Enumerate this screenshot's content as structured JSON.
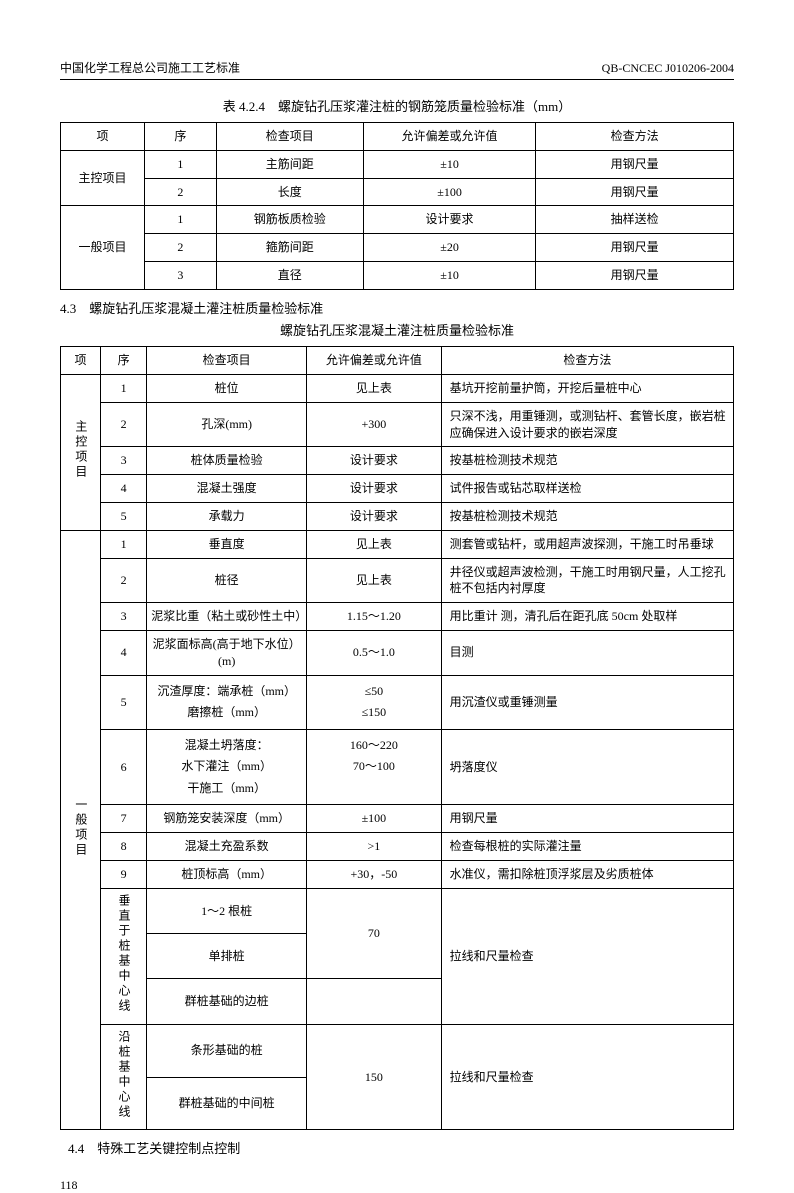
{
  "header": {
    "left": "中国化学工程总公司施工工艺标准",
    "right": "QB-CNCEC J010206-2004"
  },
  "t1": {
    "caption": "表 4.2.4　螺旋钻孔压浆灌注桩的钢筋笼质量检验标准（mm）",
    "head": [
      "项",
      "序",
      "检查项目",
      "允许偏差或允许值",
      "检查方法"
    ],
    "g1": "主控项目",
    "g2": "一般项目",
    "r": [
      [
        "1",
        "主筋间距",
        "±10",
        "用钢尺量"
      ],
      [
        "2",
        "长度",
        "±100",
        "用钢尺量"
      ],
      [
        "1",
        "钢筋板质检验",
        "设计要求",
        "抽样送检"
      ],
      [
        "2",
        "箍筋间距",
        "±20",
        "用钢尺量"
      ],
      [
        "3",
        "直径",
        "±10",
        "用钢尺量"
      ]
    ]
  },
  "sec43": "4.3　螺旋钻孔压浆混凝土灌注桩质量检验标准",
  "t2": {
    "caption": "螺旋钻孔压浆混凝土灌注桩质量检验标准",
    "head": [
      "项",
      "序",
      "检查项目",
      "允许偏差或允许值",
      "检查方法"
    ],
    "g1": "主控项目",
    "g2": "一般项目",
    "zk": [
      [
        "1",
        "桩位",
        "见上表",
        "基坑开挖前量护筒，开挖后量桩中心"
      ],
      [
        "2",
        "孔深(mm)",
        "+300",
        "只深不浅，用重锤测，或测钻杆、套管长度，嵌岩桩应确保进入设计要求的嵌岩深度"
      ],
      [
        "3",
        "桩体质量检验",
        "设计要求",
        "按基桩检测技术规范"
      ],
      [
        "4",
        "混凝土强度",
        "设计要求",
        "试件报告或钻芯取样送检"
      ],
      [
        "5",
        "承载力",
        "设计要求",
        "按基桩检测技术规范"
      ]
    ],
    "yb": [
      [
        "1",
        "垂直度",
        "见上表",
        "测套管或钻杆，或用超声波探测，干施工时吊垂球"
      ],
      [
        "2",
        "桩径",
        "见上表",
        "井径仪或超声波检测，干施工时用钢尺量，人工挖孔桩不包括内衬厚度"
      ],
      [
        "3",
        "泥浆比重（粘土或砂性土中）",
        "1.15～1.20",
        "用比重计  测，清孔后在距孔底 50cm 处取样"
      ],
      [
        "4",
        "泥浆面标高(高于地下水位）(m)",
        "0.5～1.0",
        "目测"
      ],
      [
        "5",
        "沉渣厚度：端承桩（mm）\n磨擦桩（mm）",
        "≤50\n≤150",
        "用沉渣仪或重锤测量"
      ],
      [
        "6",
        "混凝土坍落度：\n水下灌注（mm）\n干施工（mm）",
        "160～220\n70～100\n　",
        "坍落度仪"
      ],
      [
        "7",
        "钢筋笼安装深度（mm）",
        "±100",
        "用钢尺量"
      ],
      [
        "8",
        "混凝土充盈系数",
        ">1",
        "检查每根桩的实际灌注量"
      ],
      [
        "9",
        "桩顶标高（mm）",
        "+30，-50",
        "水准仪，需扣除桩顶浮浆层及劣质桩体"
      ]
    ],
    "sg1": "垂直于桩基中心线",
    "sg2": "沿桩基中心线",
    "sr1": [
      "1～2 根桩",
      "单排桩",
      "群桩基础的边桩"
    ],
    "sv1": "70",
    "sm1": "拉线和尺量检查",
    "sr2": [
      "条形基础的桩",
      "群桩基础的中间桩"
    ],
    "sv2": "150",
    "sm2": "拉线和尺量检查"
  },
  "sec44": "4.4　特殊工艺关键控制点控制",
  "page": "118"
}
